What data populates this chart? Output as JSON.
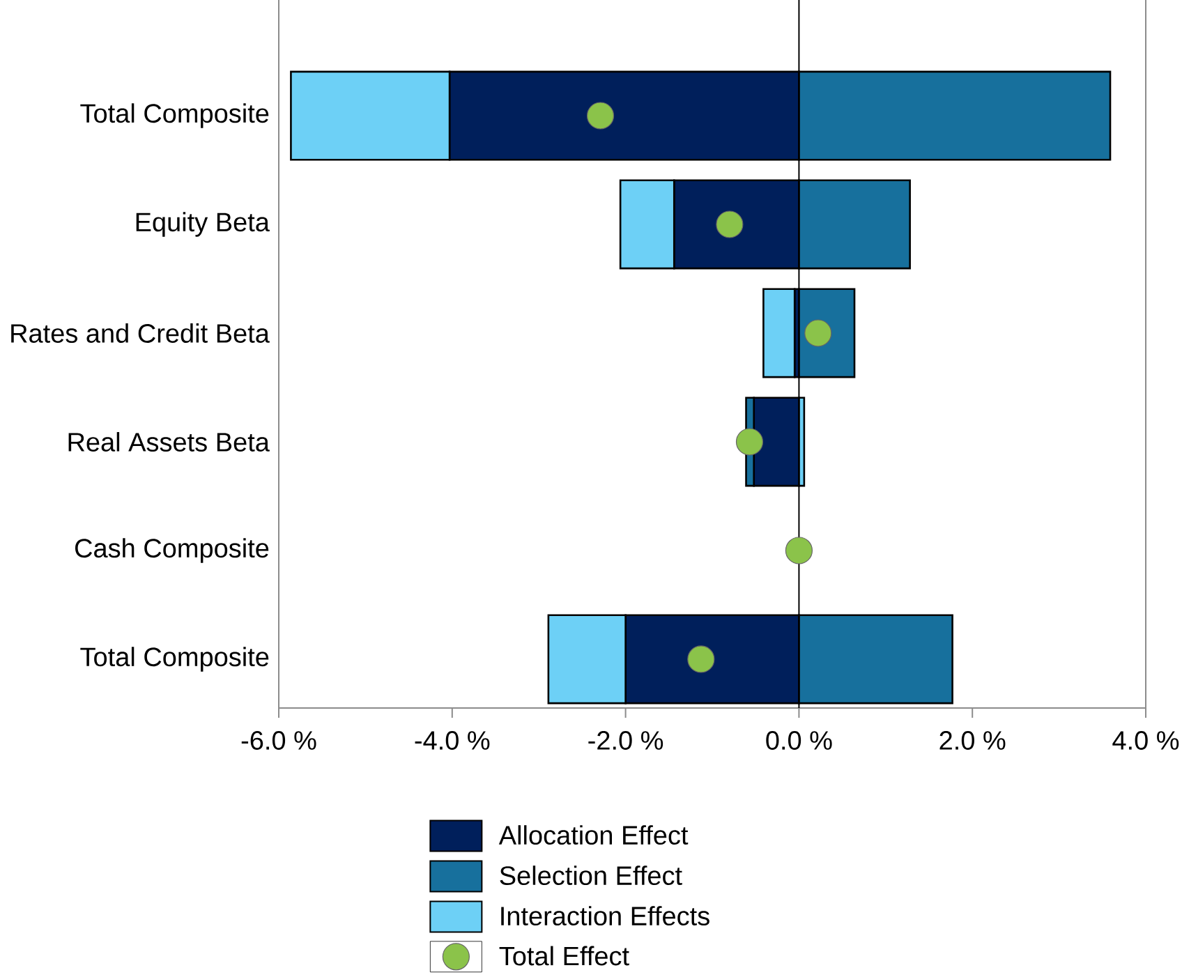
{
  "chart_data": {
    "type": "bar",
    "orientation": "horizontal",
    "stacked": true,
    "categories": [
      "Total Composite",
      "Equity Beta",
      "Rates and Credit Beta",
      "Real Assets Beta",
      "Cash Composite",
      "Total Composite"
    ],
    "series": [
      {
        "name": "Allocation Effect",
        "color": "#001f5b",
        "values": [
          -4.03,
          -1.44,
          -0.05,
          -0.52,
          0,
          -2.0
        ]
      },
      {
        "name": "Selection Effect",
        "color": "#17709d",
        "values": [
          3.59,
          1.28,
          0.64,
          -0.09,
          0,
          1.77
        ]
      },
      {
        "name": "Interaction Effects",
        "color": "#6dd0f6",
        "values": [
          -1.83,
          -0.62,
          -0.36,
          0.06,
          0,
          -0.89
        ]
      },
      {
        "name": "Total Effect",
        "type": "scatter",
        "color": "#8bc34a",
        "values": [
          -2.29,
          -0.8,
          0.22,
          -0.57,
          0,
          -1.13
        ]
      }
    ],
    "marker": "circle",
    "xlim": [
      -6,
      4
    ],
    "xticks": [
      {
        "value": -6,
        "label": "-6.0 %"
      },
      {
        "value": -4,
        "label": "-4.0 %"
      },
      {
        "value": -2,
        "label": "-2.0 %"
      },
      {
        "value": 0,
        "label": "0.0 %"
      },
      {
        "value": 2,
        "label": "2.0 %"
      },
      {
        "value": 4,
        "label": "4.0 %"
      }
    ],
    "ref_lines": [
      {
        "axis": "x",
        "value": 0
      }
    ],
    "legend": "bottom"
  }
}
